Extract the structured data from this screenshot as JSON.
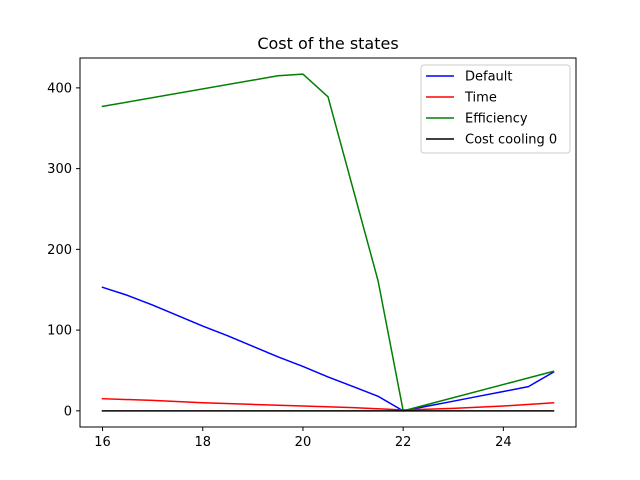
{
  "chart_data": {
    "type": "line",
    "title": "Cost of the states",
    "xlabel": "",
    "ylabel": "",
    "xlim": [
      15.55,
      25.45
    ],
    "ylim": [
      -20,
      437
    ],
    "xticks": [
      16,
      18,
      20,
      22,
      24
    ],
    "yticks": [
      0,
      100,
      200,
      300,
      400
    ],
    "grid": false,
    "legend_position": "top-right",
    "series": [
      {
        "name": "Default",
        "color": "#0000ff",
        "x": [
          16,
          16.5,
          17,
          17.5,
          18,
          18.5,
          19,
          19.5,
          20,
          20.5,
          21,
          21.5,
          22,
          22.5,
          23,
          23.5,
          24,
          24.5,
          25
        ],
        "y": [
          153,
          143,
          131,
          118,
          105,
          93,
          80,
          67,
          55,
          42,
          30,
          18,
          0,
          6,
          12,
          18,
          24,
          30,
          48
        ]
      },
      {
        "name": "Time",
        "color": "#ff0000",
        "x": [
          16,
          17,
          18,
          19,
          20,
          21,
          22,
          23,
          24,
          25
        ],
        "y": [
          15,
          13,
          10,
          8,
          6,
          4,
          1,
          3,
          6,
          10
        ]
      },
      {
        "name": "Efficiency",
        "color": "#008000",
        "x": [
          16,
          19.5,
          20,
          20.5,
          21.5,
          22,
          25
        ],
        "y": [
          377,
          415,
          417,
          389,
          161,
          0,
          49
        ]
      },
      {
        "name": "Cost cooling 0",
        "color": "#000000",
        "x": [
          16,
          25
        ],
        "y": [
          0,
          0
        ]
      }
    ]
  }
}
